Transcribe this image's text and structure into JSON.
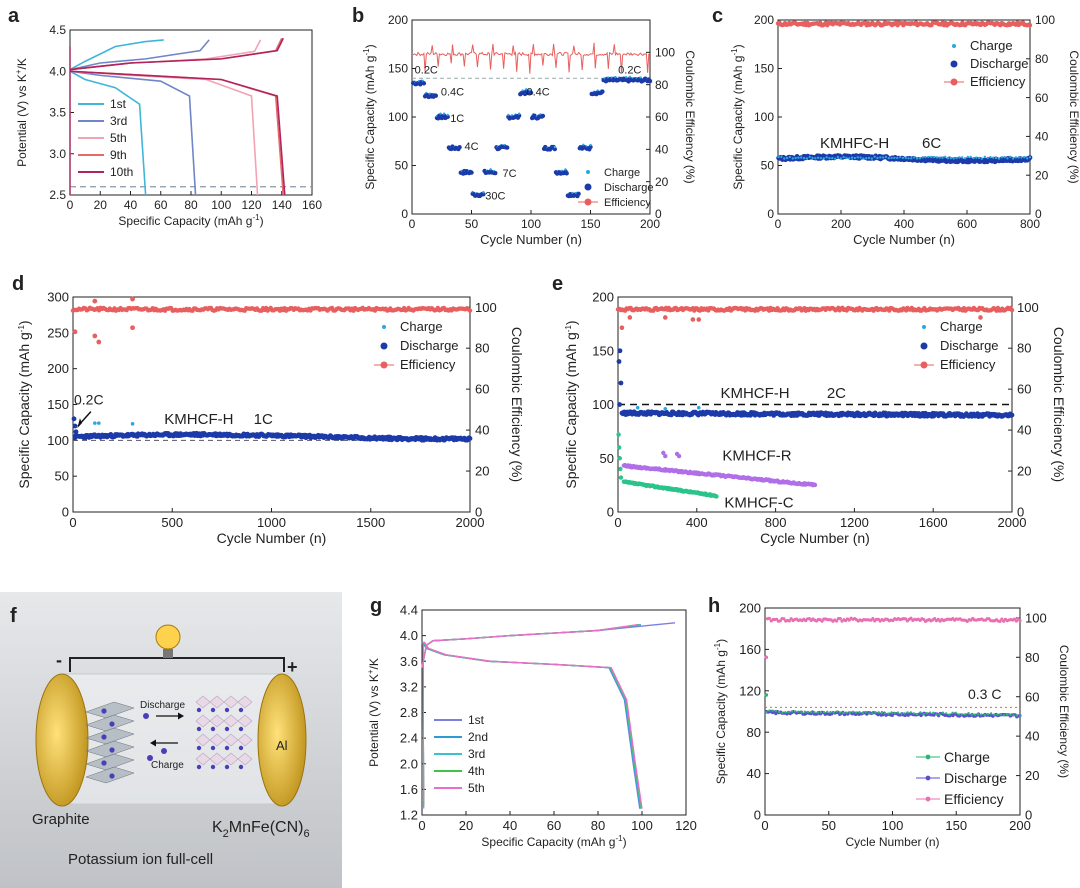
{
  "panels": {
    "a": "a",
    "b": "b",
    "c": "c",
    "d": "d",
    "e": "e",
    "f": "f",
    "g": "g",
    "h": "h"
  },
  "colors": {
    "charge": "#2aa7e0",
    "discharge": "#1c3aa8",
    "efficiency": "#e85f5f",
    "h_efficiency": "#e86fb0",
    "h_charge": "#2bb673",
    "h_discharge": "#5a4fcf",
    "kmhcf_r": "#b06ee8",
    "kmhcf_c": "#2bc48a",
    "a_1st": "#3fb6d8",
    "a_3rd": "#6f86c8",
    "a_5th": "#f2a3b3",
    "a_9th": "#e36b6b",
    "a_10th": "#b0245e",
    "g_1st": "#7b7fe0",
    "g_2nd": "#2b9bd8",
    "g_3rd": "#38c2c9",
    "g_4th": "#3fc44a",
    "g_5th": "#e86fc9"
  },
  "schematic": {
    "minus": "-",
    "plus": "+",
    "discharge": "Discharge",
    "charge": "Charge",
    "al": "Al",
    "graphite": "Graphite",
    "cathode_main": "K",
    "cathode_sub1": "2",
    "cathode_rest": "MnFe(CN)",
    "cathode_sub2": "6",
    "title": "Potassium ion full-cell"
  },
  "chart_data": [
    {
      "id": "a",
      "type": "line",
      "xlabel_main": "Specific Capacity (mAh g",
      "xlabel_sup": "-1",
      "xlabel_end": ")",
      "ylabel_main": "Potential (V) vs K",
      "ylabel_sup": "+",
      "ylabel_end": "/K",
      "xlim": [
        0,
        16
      ],
      "ylim": [
        2.5,
        4.5
      ],
      "xticks": [
        "0",
        "20",
        "40",
        "60",
        "80",
        "100",
        "120",
        "140",
        "160"
      ],
      "xtick_values": [
        0,
        2,
        4,
        6,
        8,
        10,
        12,
        14,
        16
      ],
      "yticks": [
        "2.5",
        "3.0",
        "3.5",
        "4.0",
        "4.5"
      ],
      "ytick_values": [
        2.5,
        3.0,
        3.5,
        4.0,
        4.5
      ],
      "x_scale_note": "tick labels show capacity; axis internal scale 0-16 corresponds to 0-160 mAh/g",
      "cutoff": 2.6,
      "legend": [
        "1st",
        "3rd",
        "5th",
        "9th",
        "10th"
      ],
      "series": [
        {
          "name": "1st",
          "charge_x": [
            0,
            1,
            3,
            5,
            6.2
          ],
          "charge_y": [
            4.02,
            4.12,
            4.3,
            4.36,
            4.38
          ],
          "discharge_x": [
            0,
            1,
            3,
            4.6,
            5.0
          ],
          "discharge_y": [
            4.0,
            3.9,
            3.8,
            3.6,
            2.5
          ]
        },
        {
          "name": "3rd",
          "charge_x": [
            0,
            2,
            5,
            8.6,
            9.2
          ],
          "charge_y": [
            4.02,
            4.1,
            4.15,
            4.25,
            4.38
          ],
          "discharge_x": [
            0,
            2,
            6,
            7.9,
            8.3
          ],
          "discharge_y": [
            4.0,
            3.95,
            3.88,
            3.7,
            2.5
          ]
        },
        {
          "name": "5th",
          "charge_x": [
            0,
            4,
            9,
            12.2,
            12.6
          ],
          "charge_y": [
            4.02,
            4.1,
            4.15,
            4.24,
            4.38
          ],
          "discharge_x": [
            0,
            4,
            9,
            12,
            12.4
          ],
          "discharge_y": [
            4.0,
            3.95,
            3.9,
            3.7,
            2.5
          ]
        },
        {
          "name": "9th",
          "charge_x": [
            0,
            4,
            10,
            13.6,
            14.0
          ],
          "charge_y": [
            4.02,
            4.1,
            4.15,
            4.25,
            4.4
          ],
          "discharge_x": [
            0,
            4,
            10,
            13.6,
            14.1
          ],
          "discharge_y": [
            4.0,
            3.96,
            3.9,
            3.7,
            2.5
          ]
        },
        {
          "name": "10th",
          "charge_x": [
            0,
            4,
            10,
            13.7,
            14.1
          ],
          "charge_y": [
            4.02,
            4.1,
            4.15,
            4.25,
            4.4
          ],
          "discharge_x": [
            0,
            4,
            10,
            13.7,
            14.2
          ],
          "discharge_y": [
            4.0,
            3.96,
            3.9,
            3.7,
            2.5
          ]
        }
      ]
    },
    {
      "id": "b",
      "type": "scatter",
      "xlabel": "Cycle Number (n)",
      "ylabel_main": "Specific Capacity (mAh g",
      "ylabel_sup": "-1",
      "ylabel_end": ")",
      "y2label": "Coulombic Efficiency (%)",
      "xlim": [
        0,
        200
      ],
      "ylim": [
        0,
        200
      ],
      "y2lim": [
        0,
        120
      ],
      "xticks": [
        "0",
        "50",
        "100",
        "150",
        "200"
      ],
      "xtick_values": [
        0,
        50,
        100,
        150,
        200
      ],
      "yticks": [
        "0",
        "50",
        "100",
        "150",
        "200"
      ],
      "ytick_values": [
        0,
        50,
        100,
        150,
        200
      ],
      "y2ticks": [
        "0",
        "20",
        "40",
        "60",
        "80",
        "100"
      ],
      "y2tick_values": [
        0,
        20,
        40,
        60,
        80,
        100
      ],
      "ref_line": 140,
      "legend": [
        "Charge",
        "Discharge",
        "Efficiency"
      ],
      "rate_labels": [
        {
          "text": "0.2C",
          "x": 12,
          "y": 145
        },
        {
          "text": "0.4C",
          "x": 34,
          "y": 122
        },
        {
          "text": "1C",
          "x": 38,
          "y": 95
        },
        {
          "text": "4C",
          "x": 50,
          "y": 66
        },
        {
          "text": "7C",
          "x": 82,
          "y": 38
        },
        {
          "text": "30C",
          "x": 70,
          "y": 15
        },
        {
          "text": "0.4C",
          "x": 106,
          "y": 122
        },
        {
          "text": "0.2C",
          "x": 183,
          "y": 145
        }
      ],
      "segments": [
        {
          "from": 1,
          "to": 10,
          "value": 135
        },
        {
          "from": 11,
          "to": 20,
          "value": 122
        },
        {
          "from": 21,
          "to": 30,
          "value": 100
        },
        {
          "from": 31,
          "to": 40,
          "value": 68
        },
        {
          "from": 41,
          "to": 50,
          "value": 43
        },
        {
          "from": 51,
          "to": 60,
          "value": 20
        },
        {
          "from": 61,
          "to": 70,
          "value": 43
        },
        {
          "from": 71,
          "to": 80,
          "value": 68
        },
        {
          "from": 81,
          "to": 90,
          "value": 100
        },
        {
          "from": 91,
          "to": 100,
          "value": 125
        },
        {
          "from": 101,
          "to": 110,
          "value": 100
        },
        {
          "from": 111,
          "to": 120,
          "value": 68
        },
        {
          "from": 121,
          "to": 130,
          "value": 43
        },
        {
          "from": 131,
          "to": 140,
          "value": 20
        },
        {
          "from": 141,
          "to": 150,
          "value": 68
        },
        {
          "from": 151,
          "to": 160,
          "value": 125
        },
        {
          "from": 161,
          "to": 200,
          "value": 138
        }
      ],
      "efficiency_mean": 99
    },
    {
      "id": "c",
      "type": "scatter",
      "xlabel": "Cycle Number (n)",
      "ylabel_main": "Specific Capacity (mAh g",
      "ylabel_sup": "-1",
      "ylabel_end": ")",
      "y2label": "Coulombic Efficiency (%)",
      "xlim": [
        0,
        800
      ],
      "ylim": [
        0,
        200
      ],
      "y2lim": [
        0,
        100
      ],
      "xticks": [
        "0",
        "200",
        "400",
        "600",
        "800"
      ],
      "xtick_values": [
        0,
        200,
        400,
        600,
        800
      ],
      "yticks": [
        "0",
        "50",
        "100",
        "150",
        "200"
      ],
      "ytick_values": [
        0,
        50,
        100,
        150,
        200
      ],
      "y2ticks": [
        "0",
        "20",
        "40",
        "60",
        "80",
        "100"
      ],
      "y2tick_values": [
        0,
        20,
        40,
        60,
        80,
        100
      ],
      "annotation": "KMHFC-H",
      "rate": "6C",
      "legend": [
        "Charge",
        "Discharge",
        "Efficiency"
      ],
      "discharge_mean": 57,
      "efficiency_mean": 98
    },
    {
      "id": "d",
      "type": "scatter",
      "xlabel": "Cycle Number (n)",
      "ylabel_main": "Specific Capacity (mAh g",
      "ylabel_sup": "-1",
      "ylabel_end": ")",
      "y2label": "Coulombic Efficiency (%)",
      "xlim": [
        0,
        2000
      ],
      "ylim": [
        0,
        300
      ],
      "y2lim": [
        0,
        105
      ],
      "xticks": [
        "0",
        "500",
        "1000",
        "1500",
        "2000"
      ],
      "xtick_values": [
        0,
        500,
        1000,
        1500,
        2000
      ],
      "yticks": [
        "0",
        "50",
        "100",
        "150",
        "200",
        "250",
        "300"
      ],
      "ytick_values": [
        0,
        50,
        100,
        150,
        200,
        250,
        300
      ],
      "y2ticks": [
        "0",
        "20",
        "40",
        "60",
        "80",
        "100"
      ],
      "y2tick_values": [
        0,
        20,
        40,
        60,
        80,
        100
      ],
      "annotation": "KMHCF-H",
      "rate": "1C",
      "initial_rate": "0.2C",
      "ref_line": 100,
      "legend": [
        "Charge",
        "Discharge",
        "Efficiency"
      ],
      "discharge_mean": 105,
      "efficiency_mean": 99
    },
    {
      "id": "e",
      "type": "scatter",
      "xlabel": "Cycle Number (n)",
      "ylabel_main": "Specific Capacity (mAh g",
      "ylabel_sup": "-1",
      "ylabel_end": ")",
      "y2label": "Coulombic Efficiency (%)",
      "xlim": [
        0,
        2000
      ],
      "ylim": [
        0,
        200
      ],
      "y2lim": [
        0,
        105
      ],
      "xticks": [
        "0",
        "400",
        "800",
        "1200",
        "1600",
        "2000"
      ],
      "xtick_values": [
        0,
        400,
        800,
        1200,
        1600,
        2000
      ],
      "yticks": [
        "0",
        "50",
        "100",
        "150",
        "200"
      ],
      "ytick_values": [
        0,
        50,
        100,
        150,
        200
      ],
      "y2ticks": [
        "0",
        "20",
        "40",
        "60",
        "80",
        "100"
      ],
      "y2tick_values": [
        0,
        20,
        40,
        60,
        80,
        100
      ],
      "annotation": "KMHCF-H",
      "rate": "2C",
      "ref_line": 100,
      "label_r": "KMHCF-R",
      "label_c": "KMHCF-C",
      "legend": [
        "Charge",
        "Discharge",
        "Efficiency"
      ],
      "h_discharge_mean": 92,
      "r_start": 43,
      "r_end": 25,
      "r_cycles": 1000,
      "c_start": 28,
      "c_end": 15,
      "c_cycles": 500,
      "efficiency_mean": 99
    },
    {
      "id": "g",
      "type": "line",
      "xlabel_main": "Specific Capacity (mAh g",
      "xlabel_sup": "-1",
      "xlabel_end": ")",
      "ylabel_main": "Potential (V) vs K",
      "ylabel_sup": "+",
      "ylabel_end": "/K",
      "xlim": [
        0,
        120
      ],
      "ylim": [
        1.2,
        4.4
      ],
      "xticks": [
        "0",
        "20",
        "40",
        "60",
        "80",
        "100",
        "120"
      ],
      "xtick_values": [
        0,
        20,
        40,
        60,
        80,
        100,
        120
      ],
      "yticks": [
        "1.2",
        "1.6",
        "2.0",
        "2.4",
        "2.8",
        "3.2",
        "3.6",
        "4.0",
        "4.4"
      ],
      "ytick_values": [
        1.2,
        1.6,
        2.0,
        2.4,
        2.8,
        3.2,
        3.6,
        4.0,
        4.4
      ],
      "legend": [
        "1st",
        "2nd",
        "3rd",
        "4th",
        "5th"
      ],
      "charge_x": [
        0,
        2,
        5,
        20,
        40,
        60,
        80,
        100
      ],
      "charge_y": [
        3.5,
        3.85,
        3.92,
        3.95,
        4.0,
        4.04,
        4.08,
        4.15
      ],
      "discharge_x": [
        0,
        2,
        10,
        30,
        60,
        85,
        92,
        96,
        99
      ],
      "discharge_y": [
        3.9,
        3.8,
        3.7,
        3.6,
        3.55,
        3.5,
        3.0,
        2.0,
        1.3
      ],
      "first_charge_end": 115
    },
    {
      "id": "h",
      "type": "scatter",
      "xlabel": "Cycle Number (n)",
      "ylabel_main": "Specific Capacity (mAh g",
      "ylabel_sup": "-1",
      "ylabel_end": ")",
      "y2label": "Coulombic Efficiency (%)",
      "xlim": [
        0,
        200
      ],
      "ylim": [
        0,
        200
      ],
      "y2lim": [
        0,
        105
      ],
      "xticks": [
        "0",
        "50",
        "100",
        "150",
        "200"
      ],
      "xtick_values": [
        0,
        50,
        100,
        150,
        200
      ],
      "yticks": [
        "0",
        "40",
        "80",
        "120",
        "160",
        "200"
      ],
      "ytick_values": [
        0,
        40,
        80,
        120,
        160,
        200
      ],
      "y2ticks": [
        "0",
        "20",
        "40",
        "60",
        "80",
        "100"
      ],
      "y2tick_values": [
        0,
        20,
        40,
        60,
        80,
        100
      ],
      "rate": "0.3 C",
      "ref_line": 104,
      "legend": [
        "Charge",
        "Discharge",
        "Efficiency"
      ],
      "discharge_mean": 99,
      "efficiency_mean": 99
    }
  ]
}
